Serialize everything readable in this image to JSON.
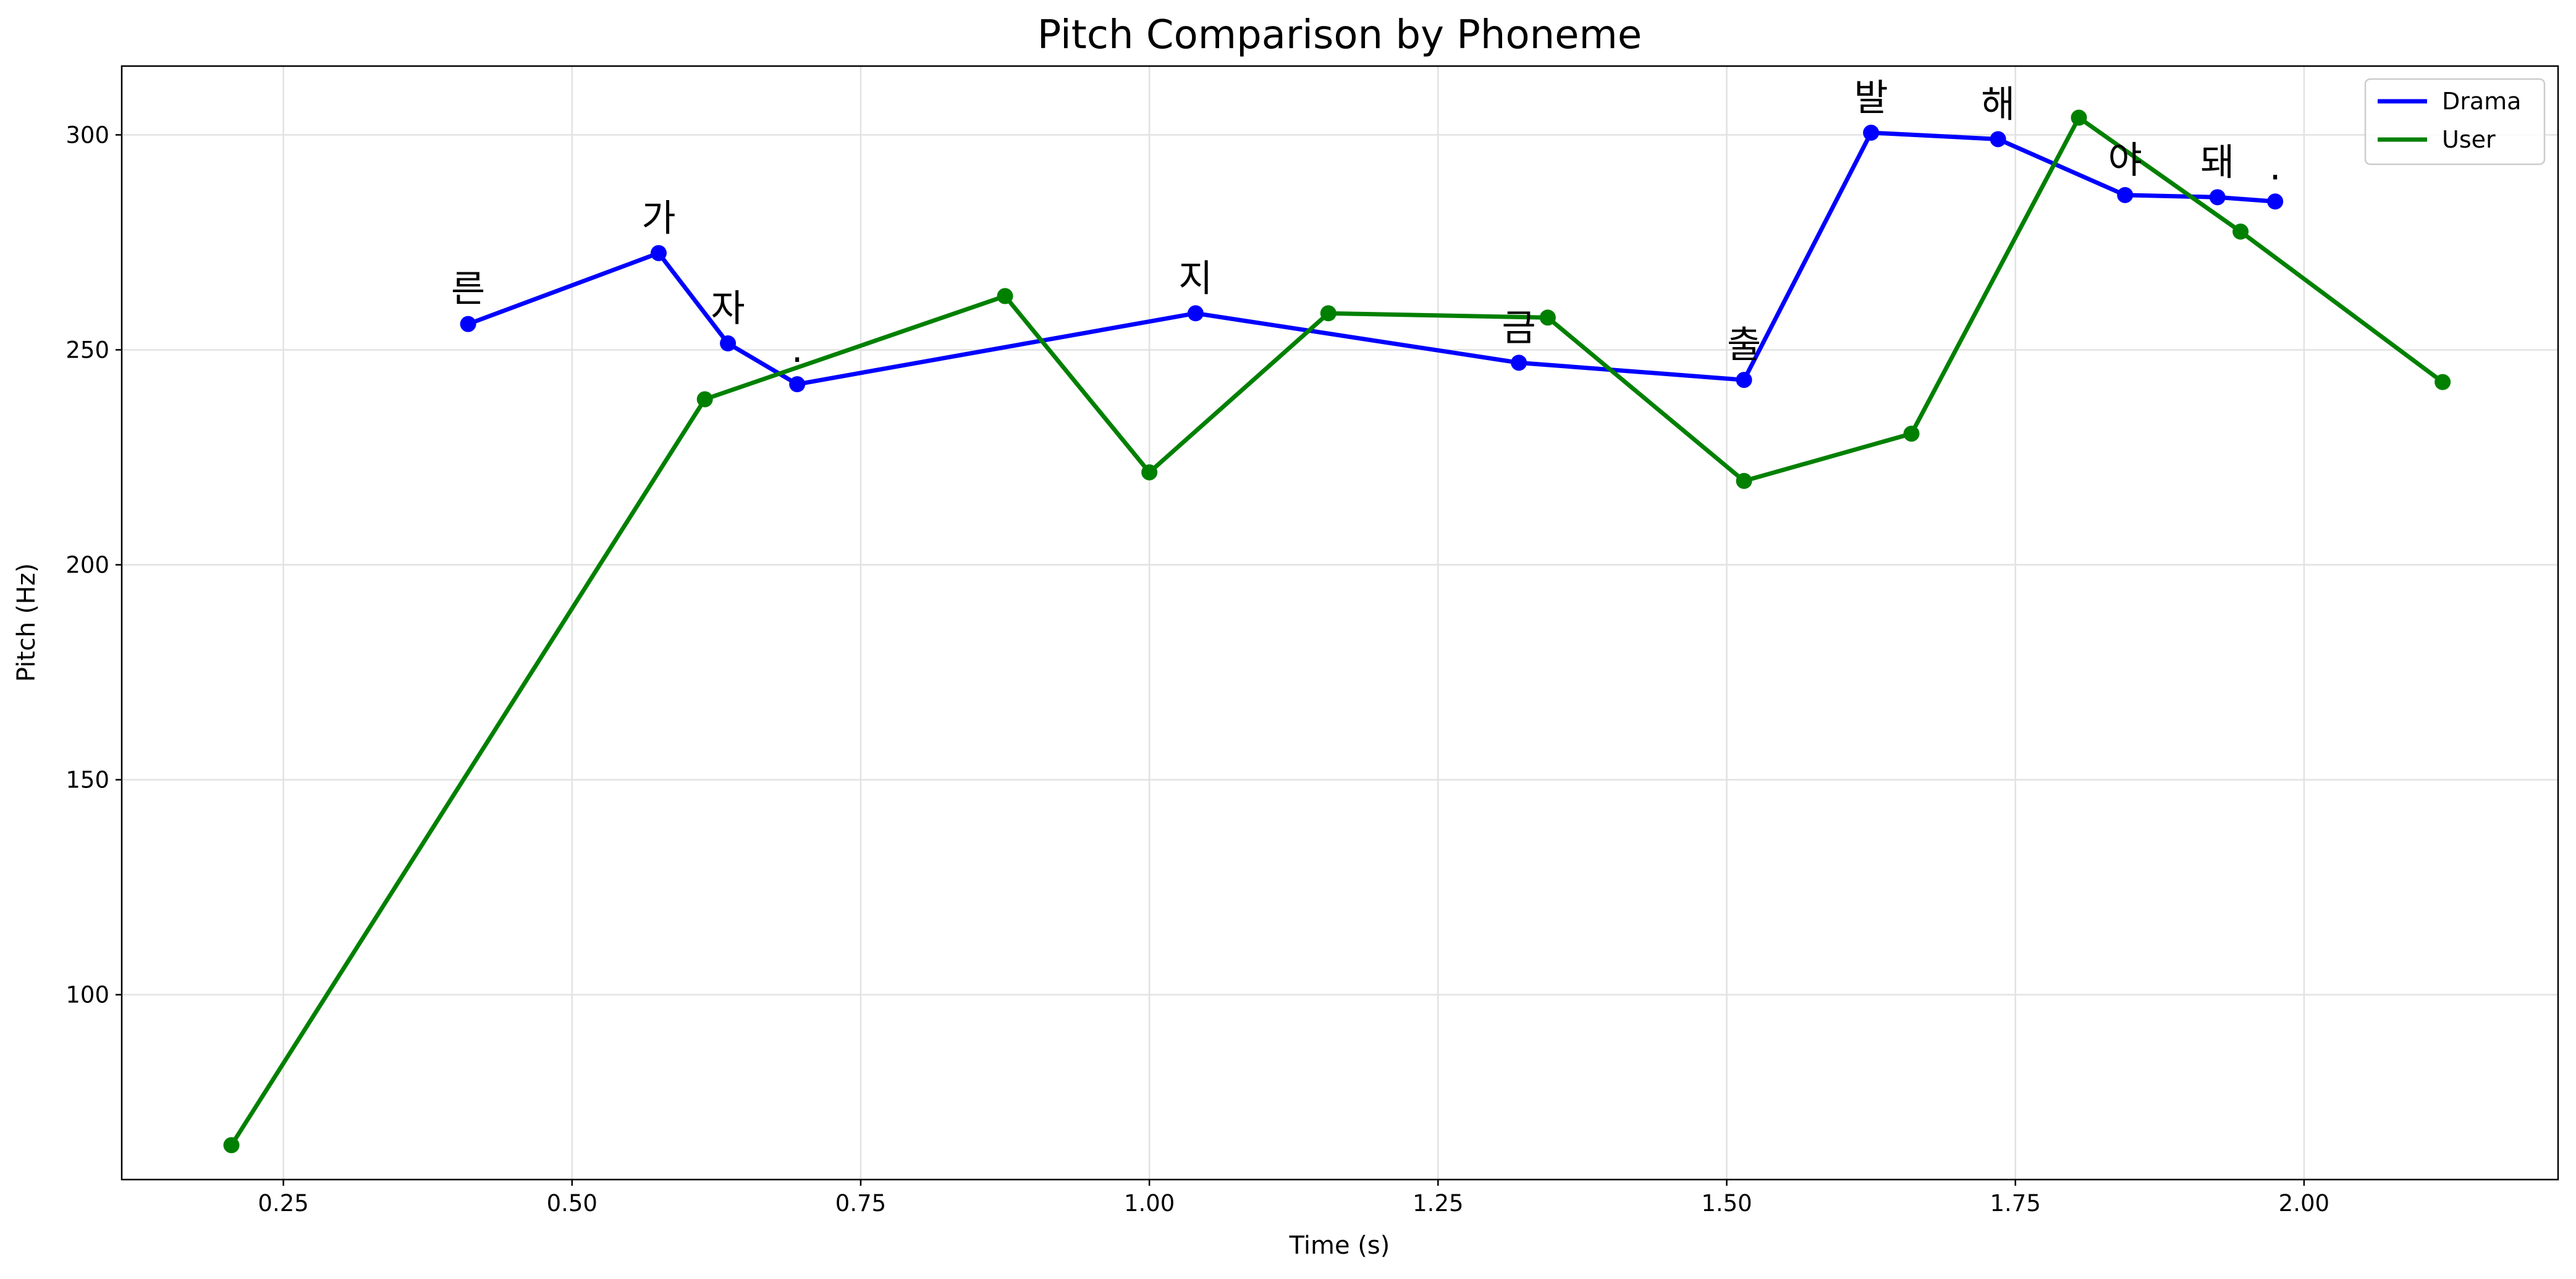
{
  "chart_data": {
    "type": "line",
    "title": "Pitch Comparison by Phoneme",
    "xlabel": "Time (s)",
    "ylabel": "Pitch (Hz)",
    "xlim": [
      0.11,
      2.22
    ],
    "ylim": [
      57,
      316
    ],
    "xticks": [
      0.25,
      0.5,
      0.75,
      1.0,
      1.25,
      1.5,
      1.75,
      2.0
    ],
    "xtick_labels": [
      "0.25",
      "0.50",
      "0.75",
      "1.00",
      "1.25",
      "1.50",
      "1.75",
      "2.00"
    ],
    "yticks": [
      100,
      150,
      200,
      250,
      300
    ],
    "ytick_labels": [
      "100",
      "150",
      "200",
      "250",
      "300"
    ],
    "grid": true,
    "legend_position": "top-right",
    "series": [
      {
        "name": "Drama",
        "color": "#0000ff",
        "x": [
          0.41,
          0.575,
          0.635,
          0.695,
          1.04,
          1.32,
          1.515,
          1.625,
          1.735,
          1.845,
          1.925,
          1.975
        ],
        "y": [
          256,
          272.5,
          251.5,
          242,
          258.5,
          247,
          243,
          300.5,
          299,
          286,
          285.5,
          284.5
        ],
        "phonemes": [
          "른",
          "가",
          "자",
          ".",
          "지",
          "금",
          "출",
          "발",
          "해",
          "야",
          "돼",
          "."
        ]
      },
      {
        "name": "User",
        "color": "#008000",
        "x": [
          0.205,
          0.615,
          0.875,
          1.0,
          1.155,
          1.345,
          1.515,
          1.66,
          1.805,
          1.945,
          2.12
        ],
        "y": [
          65,
          238.5,
          262.5,
          221.5,
          258.5,
          257.5,
          219.5,
          230.5,
          304,
          277.5,
          242.5
        ]
      }
    ]
  }
}
